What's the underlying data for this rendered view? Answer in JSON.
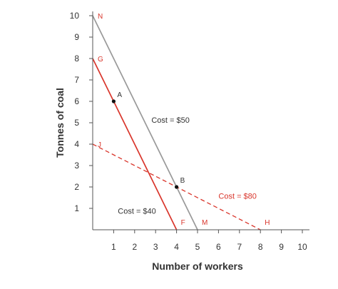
{
  "chart_data": {
    "type": "line",
    "xlabel": "Number of workers",
    "ylabel": "Tonnes of coal",
    "xlim": [
      0,
      10
    ],
    "ylim": [
      0,
      10
    ],
    "x_ticks": [
      1,
      2,
      3,
      4,
      5,
      6,
      7,
      8,
      9,
      10
    ],
    "y_ticks": [
      1,
      2,
      3,
      4,
      5,
      6,
      7,
      8,
      9,
      10
    ],
    "grid": false,
    "colors": {
      "red": "#d9352b",
      "grey": "#999999",
      "axis": "#555555",
      "text": "#333333"
    },
    "series": [
      {
        "style": "solid",
        "color": "#999999",
        "x": [
          0,
          5
        ],
        "y": [
          10,
          0
        ],
        "start_label": "N",
        "end_label": "M",
        "label_color": "#d9352b"
      },
      {
        "style": "solid",
        "color": "#d9352b",
        "x": [
          0,
          4
        ],
        "y": [
          8,
          0
        ],
        "start_label": "G",
        "end_label": "F",
        "label_color": "#d9352b"
      },
      {
        "style": "dashed",
        "color": "#d9352b",
        "x": [
          0,
          8
        ],
        "y": [
          4,
          0
        ],
        "start_label": "J",
        "end_label": "H",
        "label_color": "#d9352b"
      }
    ],
    "points": [
      {
        "label": "A",
        "x": 1,
        "y": 6
      },
      {
        "label": "B",
        "x": 4,
        "y": 2
      }
    ],
    "annotations": [
      {
        "text": "Cost = $50",
        "x": 2.8,
        "y": 5,
        "color": "#333333"
      },
      {
        "text": "Cost = $80",
        "x": 6.0,
        "y": 1.45,
        "color": "#d9352b"
      },
      {
        "text": "Cost = $40",
        "x": 1.2,
        "y": 0.75,
        "color": "#333333"
      }
    ]
  }
}
